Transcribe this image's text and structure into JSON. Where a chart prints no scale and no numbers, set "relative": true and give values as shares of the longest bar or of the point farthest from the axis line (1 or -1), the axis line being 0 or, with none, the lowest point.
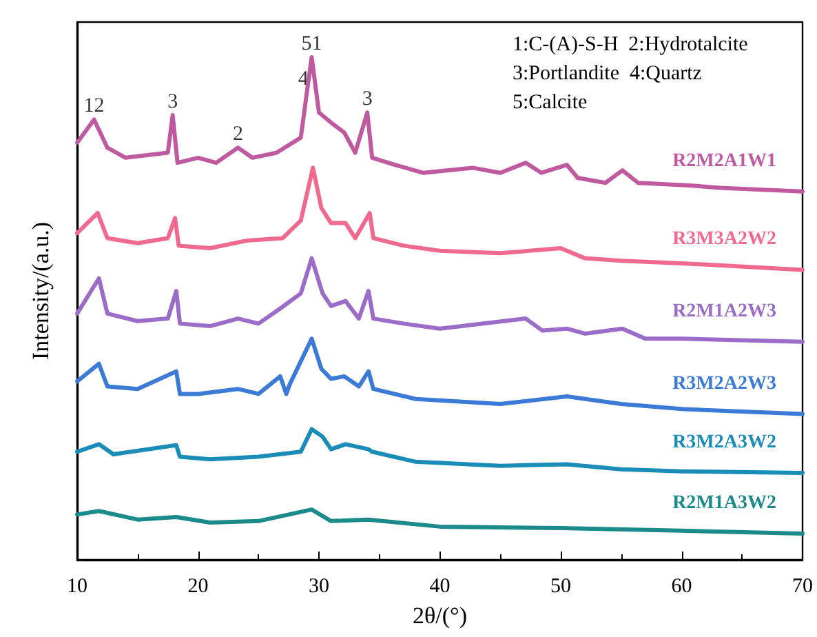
{
  "chart_data": {
    "type": "line",
    "relative": true,
    "xlabel": "2θ/(°)",
    "ylabel": "Intensity/(a.u.)",
    "xlim": [
      10,
      70
    ],
    "xticks": [
      10,
      20,
      30,
      40,
      50,
      60,
      70
    ],
    "marker": "none",
    "line_style": "solid",
    "annotations": [
      "1:C-(A)-S-H  2:Hydrotalcite",
      "3:Portlandite  4:Quartz",
      "5:Calcite",
      {
        "text": "12",
        "x": 11.4,
        "y": 0.876
      },
      {
        "text": "3",
        "x": 17.9,
        "y": 0.885
      },
      {
        "text": "2",
        "x": 23.3,
        "y": 0.82
      },
      {
        "text": "51",
        "x": 29.4,
        "y": 1.0
      },
      {
        "text": "4",
        "x": 28.7,
        "y": 0.93
      },
      {
        "text": "3",
        "x": 34.0,
        "y": 0.89
      }
    ],
    "series": [
      {
        "name": "R2M2A1W1",
        "color": "#c05aa0",
        "x": [
          10,
          11.4,
          12.5,
          14,
          17.5,
          17.9,
          18.3,
          20,
          21.5,
          23.3,
          24.5,
          26.5,
          28.5,
          29.0,
          29.4,
          30,
          31.0,
          32.1,
          33.0,
          34.0,
          34.4,
          36.3,
          38.6,
          42.7,
          45.0,
          47.1,
          48.4,
          50.5,
          51.4,
          53.7,
          55.1,
          56.4,
          60.6,
          63.2,
          70
        ],
        "values": [
          0.83,
          0.876,
          0.82,
          0.8,
          0.81,
          0.885,
          0.79,
          0.8,
          0.79,
          0.82,
          0.8,
          0.81,
          0.84,
          0.93,
          1.0,
          0.89,
          0.87,
          0.85,
          0.81,
          0.89,
          0.8,
          0.786,
          0.77,
          0.78,
          0.77,
          0.79,
          0.77,
          0.786,
          0.76,
          0.75,
          0.775,
          0.75,
          0.745,
          0.74,
          0.733
        ]
      },
      {
        "name": "R3M3A2W2",
        "color": "#f06a90",
        "x": [
          10,
          11.7,
          12.5,
          15,
          17.5,
          18.1,
          18.4,
          21,
          24,
          27,
          28.5,
          29.5,
          30.2,
          31,
          32.2,
          33.0,
          34.2,
          34.5,
          37,
          40,
          45,
          50,
          52,
          55,
          60,
          70
        ],
        "values": [
          0.65,
          0.69,
          0.64,
          0.63,
          0.64,
          0.68,
          0.625,
          0.62,
          0.635,
          0.64,
          0.675,
          0.78,
          0.7,
          0.67,
          0.67,
          0.64,
          0.69,
          0.64,
          0.625,
          0.615,
          0.61,
          0.62,
          0.6,
          0.595,
          0.59,
          0.577
        ]
      },
      {
        "name": "R2M1A2W3",
        "color": "#9b6cc8",
        "x": [
          10,
          11.8,
          12.5,
          15,
          17.5,
          18.2,
          18.5,
          21,
          23.3,
          25,
          26.8,
          28.5,
          29.4,
          30.3,
          31,
          32.2,
          33.3,
          34.1,
          34.5,
          37,
          40,
          47.1,
          48.5,
          50.5,
          52,
          55.1,
          57,
          60,
          70
        ],
        "values": [
          0.49,
          0.56,
          0.49,
          0.475,
          0.48,
          0.535,
          0.47,
          0.465,
          0.48,
          0.47,
          0.5,
          0.53,
          0.6,
          0.53,
          0.505,
          0.515,
          0.48,
          0.535,
          0.48,
          0.47,
          0.46,
          0.48,
          0.456,
          0.46,
          0.45,
          0.46,
          0.44,
          0.44,
          0.434
        ]
      },
      {
        "name": "R3M2A2W3",
        "color": "#3b7ad6",
        "x": [
          10,
          11.8,
          12.5,
          15,
          18.2,
          18.5,
          20,
          23.3,
          25,
          26.8,
          27.3,
          27.6,
          29.4,
          30.2,
          31,
          32.1,
          33.3,
          34.1,
          34.5,
          38,
          45,
          50.5,
          55,
          60,
          70
        ],
        "values": [
          0.355,
          0.39,
          0.345,
          0.34,
          0.375,
          0.33,
          0.33,
          0.34,
          0.33,
          0.365,
          0.33,
          0.35,
          0.44,
          0.38,
          0.36,
          0.365,
          0.345,
          0.375,
          0.34,
          0.32,
          0.31,
          0.325,
          0.31,
          0.3,
          0.29
        ]
      },
      {
        "name": "R3M2A3W2",
        "color": "#1a8cb8",
        "x": [
          10,
          11.8,
          13,
          18.2,
          18.5,
          21,
          25,
          28.5,
          29.4,
          30.3,
          31,
          32.2,
          34.1,
          34.4,
          38,
          45,
          50.5,
          55,
          60,
          70
        ],
        "values": [
          0.215,
          0.23,
          0.21,
          0.228,
          0.205,
          0.2,
          0.205,
          0.215,
          0.26,
          0.245,
          0.22,
          0.23,
          0.22,
          0.215,
          0.195,
          0.187,
          0.19,
          0.18,
          0.176,
          0.173
        ]
      },
      {
        "name": "R2M1A3W2",
        "color": "#1a8a8a",
        "x": [
          10,
          11.8,
          15,
          18.2,
          21,
          25,
          29.4,
          31,
          34.1,
          40,
          50,
          60,
          70
        ],
        "values": [
          0.09,
          0.097,
          0.08,
          0.085,
          0.074,
          0.077,
          0.1,
          0.077,
          0.08,
          0.066,
          0.063,
          0.058,
          0.052
        ]
      }
    ]
  }
}
